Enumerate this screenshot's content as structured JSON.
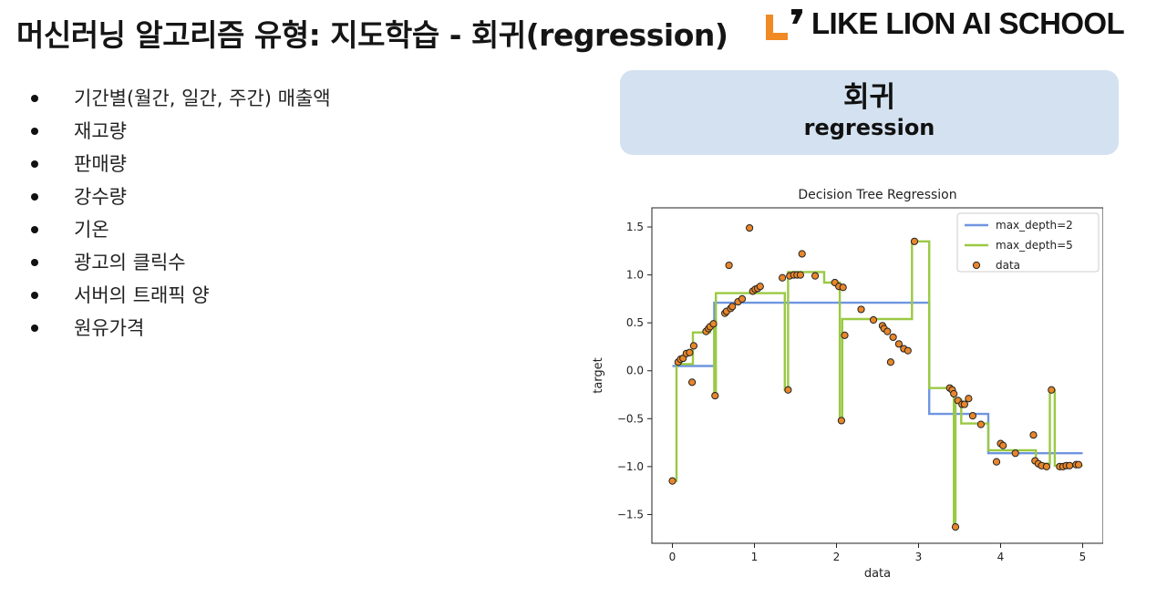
{
  "slide": {
    "title": "머신러닝 알고리즘 유형: 지도학습 - 회귀(regression)",
    "logo_text": "LIKE LION AI SCHOOL",
    "logo_colors": {
      "orange": "#f08a24",
      "black": "#111111"
    }
  },
  "bullets": [
    "기간별(월간, 일간, 주간) 매출액",
    "재고량",
    "판매량",
    "강수량",
    "기온",
    "광고의 클릭수",
    "서버의 트래픽 양",
    "원유가격"
  ],
  "callout": {
    "main": "회귀",
    "sub": "regression",
    "bg": "#d3e1f0"
  },
  "chart_data": {
    "type": "scatter",
    "title": "Decision Tree Regression",
    "xlabel": "data",
    "ylabel": "target",
    "xlim": [
      -0.25,
      5.25
    ],
    "ylim": [
      -1.8,
      1.7
    ],
    "xticks": [
      0,
      1,
      2,
      3,
      4,
      5
    ],
    "yticks": [
      -1.5,
      -1.0,
      -0.5,
      0.0,
      0.5,
      1.0,
      1.5
    ],
    "ytick_labels": [
      "−1.5",
      "−1.0",
      "−0.5",
      "0.0",
      "0.5",
      "1.0",
      "1.5"
    ],
    "legend_position": "top-right",
    "scatter": {
      "name": "data",
      "color": "#e8862a",
      "edge_color": "#222222",
      "points": [
        [
          0.0,
          -1.15
        ],
        [
          0.07,
          0.09
        ],
        [
          0.1,
          0.12
        ],
        [
          0.13,
          0.13
        ],
        [
          0.17,
          0.18
        ],
        [
          0.21,
          0.19
        ],
        [
          0.24,
          -0.12
        ],
        [
          0.26,
          0.26
        ],
        [
          0.41,
          0.41
        ],
        [
          0.44,
          0.44
        ],
        [
          0.46,
          0.46
        ],
        [
          0.5,
          0.49
        ],
        [
          0.52,
          -0.26
        ],
        [
          0.64,
          0.6
        ],
        [
          0.66,
          0.62
        ],
        [
          0.69,
          1.1
        ],
        [
          0.71,
          0.65
        ],
        [
          0.73,
          0.67
        ],
        [
          0.8,
          0.72
        ],
        [
          0.85,
          0.75
        ],
        [
          0.94,
          1.49
        ],
        [
          0.98,
          0.83
        ],
        [
          1.01,
          0.85
        ],
        [
          1.04,
          0.86
        ],
        [
          1.07,
          0.88
        ],
        [
          1.34,
          0.97
        ],
        [
          1.41,
          -0.2
        ],
        [
          1.43,
          0.99
        ],
        [
          1.48,
          1.0
        ],
        [
          1.52,
          1.0
        ],
        [
          1.56,
          1.0
        ],
        [
          1.58,
          1.22
        ],
        [
          1.74,
          0.99
        ],
        [
          1.98,
          0.92
        ],
        [
          2.03,
          0.88
        ],
        [
          2.08,
          0.87
        ],
        [
          2.06,
          -0.52
        ],
        [
          2.1,
          0.37
        ],
        [
          2.3,
          0.64
        ],
        [
          2.45,
          0.53
        ],
        [
          2.56,
          0.47
        ],
        [
          2.58,
          0.44
        ],
        [
          2.62,
          0.41
        ],
        [
          2.69,
          0.35
        ],
        [
          2.76,
          0.28
        ],
        [
          2.82,
          0.23
        ],
        [
          2.87,
          0.21
        ],
        [
          2.95,
          1.35
        ],
        [
          2.66,
          0.09
        ],
        [
          3.38,
          -0.18
        ],
        [
          3.41,
          -0.2
        ],
        [
          3.43,
          -0.24
        ],
        [
          3.45,
          -1.63
        ],
        [
          3.48,
          -0.31
        ],
        [
          3.53,
          -0.35
        ],
        [
          3.56,
          -0.35
        ],
        [
          3.61,
          -0.29
        ],
        [
          3.66,
          -0.47
        ],
        [
          3.76,
          -0.56
        ],
        [
          4.0,
          -0.76
        ],
        [
          4.03,
          -0.78
        ],
        [
          3.95,
          -0.95
        ],
        [
          4.18,
          -0.86
        ],
        [
          4.4,
          -0.67
        ],
        [
          4.42,
          -0.94
        ],
        [
          4.46,
          -0.97
        ],
        [
          4.5,
          -0.99
        ],
        [
          4.56,
          -1.0
        ],
        [
          4.62,
          -0.2
        ],
        [
          4.72,
          -1.0
        ],
        [
          4.76,
          -1.0
        ],
        [
          4.8,
          -0.99
        ],
        [
          4.84,
          -0.99
        ],
        [
          4.92,
          -0.98
        ],
        [
          4.95,
          -0.98
        ]
      ]
    },
    "series": [
      {
        "name": "max_depth=2",
        "color": "#6f95e0",
        "steps": [
          [
            0.0,
            0.05
          ],
          [
            0.51,
            0.05
          ],
          [
            0.51,
            0.71
          ],
          [
            3.13,
            0.71
          ],
          [
            3.13,
            -0.45
          ],
          [
            3.85,
            -0.45
          ],
          [
            3.85,
            -0.86
          ],
          [
            5.0,
            -0.86
          ]
        ]
      },
      {
        "name": "max_depth=5",
        "color": "#9ac944",
        "steps": [
          [
            0.0,
            -1.15
          ],
          [
            0.05,
            -1.15
          ],
          [
            0.05,
            0.07
          ],
          [
            0.25,
            0.07
          ],
          [
            0.25,
            0.4
          ],
          [
            0.46,
            0.4
          ],
          [
            0.46,
            0.45
          ],
          [
            0.51,
            0.45
          ],
          [
            0.51,
            -0.26
          ],
          [
            0.53,
            -0.26
          ],
          [
            0.53,
            0.81
          ],
          [
            1.37,
            0.81
          ],
          [
            1.37,
            -0.2
          ],
          [
            1.41,
            -0.2
          ],
          [
            1.41,
            1.03
          ],
          [
            1.85,
            1.03
          ],
          [
            1.85,
            0.92
          ],
          [
            2.04,
            0.92
          ],
          [
            2.04,
            -0.52
          ],
          [
            2.07,
            -0.52
          ],
          [
            2.07,
            0.54
          ],
          [
            2.92,
            0.54
          ],
          [
            2.92,
            1.35
          ],
          [
            3.13,
            1.35
          ],
          [
            3.13,
            -0.18
          ],
          [
            3.43,
            -0.18
          ],
          [
            3.43,
            -1.63
          ],
          [
            3.45,
            -1.63
          ],
          [
            3.45,
            -0.3
          ],
          [
            3.52,
            -0.3
          ],
          [
            3.52,
            -0.55
          ],
          [
            3.85,
            -0.55
          ],
          [
            3.85,
            -0.83
          ],
          [
            4.43,
            -0.83
          ],
          [
            4.43,
            -0.97
          ],
          [
            4.6,
            -0.97
          ],
          [
            4.6,
            -0.2
          ],
          [
            4.66,
            -0.2
          ],
          [
            4.66,
            -0.99
          ],
          [
            5.0,
            -0.99
          ]
        ]
      }
    ]
  }
}
